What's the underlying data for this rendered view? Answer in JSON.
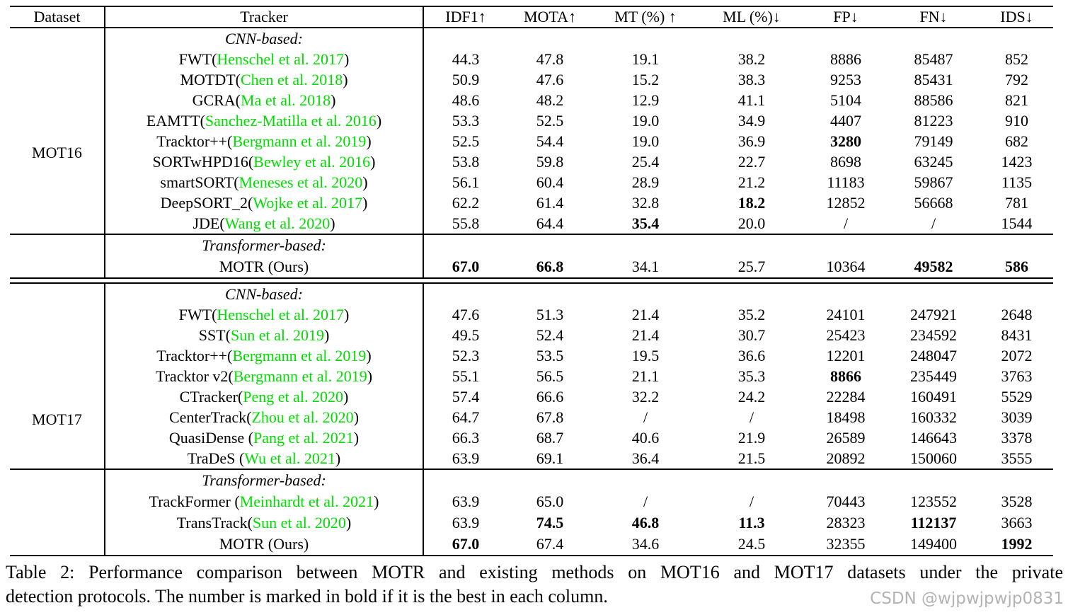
{
  "header": {
    "columns": [
      "Dataset",
      "Tracker",
      "IDF1↑",
      "MOTA↑",
      "MT (%) ↑",
      "ML (%)↓",
      "FP↓",
      "FN↓",
      "IDS↓"
    ]
  },
  "colors": {
    "citation_green": "#00dd00",
    "line_black": "#000000",
    "watermark_gray": "#b3b3b3"
  },
  "sections": [
    {
      "dataset": "MOT16",
      "blocks": [
        {
          "label": "CNN-based:",
          "rows": [
            {
              "name": "FWT",
              "sep": "",
              "cite": "Henschel et al. 2017",
              "vals": [
                "44.3",
                "47.8",
                "19.1",
                "38.2",
                "8886",
                "85487",
                "852"
              ],
              "bold": []
            },
            {
              "name": "MOTDT",
              "sep": "",
              "cite": "Chen et al. 2018",
              "vals": [
                "50.9",
                "47.6",
                "15.2",
                "38.3",
                "9253",
                "85431",
                "792"
              ],
              "bold": []
            },
            {
              "name": "GCRA",
              "sep": "",
              "cite": "Ma et al. 2018",
              "vals": [
                "48.6",
                "48.2",
                "12.9",
                "41.1",
                "5104",
                "88586",
                "821"
              ],
              "bold": []
            },
            {
              "name": "EAMTT",
              "sep": "",
              "cite": "Sanchez-Matilla et al. 2016",
              "vals": [
                "53.3",
                "52.5",
                "19.0",
                "34.9",
                "4407",
                "81223",
                "910"
              ],
              "bold": []
            },
            {
              "name": "Tracktor++",
              "sep": "",
              "cite": "Bergmann et al. 2019",
              "vals": [
                "52.5",
                "54.4",
                "19.0",
                "36.9",
                "3280",
                "79149",
                "682"
              ],
              "bold": [
                4
              ]
            },
            {
              "name": "SORTwHPD16",
              "sep": "",
              "cite": "Bewley et al. 2016",
              "vals": [
                "53.8",
                "59.8",
                "25.4",
                "22.7",
                "8698",
                "63245",
                "1423"
              ],
              "bold": []
            },
            {
              "name": "smartSORT",
              "sep": "",
              "cite": "Meneses et al. 2020",
              "vals": [
                "56.1",
                "60.4",
                "28.9",
                "21.2",
                "11183",
                "59867",
                "1135"
              ],
              "bold": []
            },
            {
              "name": "DeepSORT_2",
              "sep": "",
              "cite": "Wojke et al. 2017",
              "vals": [
                "62.2",
                "61.4",
                "32.8",
                "18.2",
                "12852",
                "56668",
                "781"
              ],
              "bold": [
                3
              ]
            },
            {
              "name": "JDE",
              "sep": "",
              "cite": "Wang et al. 2020",
              "vals": [
                "55.8",
                "64.4",
                "35.4",
                "20.0",
                "/",
                "/",
                "1544"
              ],
              "bold": [
                2
              ]
            }
          ]
        },
        {
          "label": "Transformer-based:",
          "rows": [
            {
              "name": "MOTR (Ours)",
              "sep": "",
              "cite": null,
              "vals": [
                "67.0",
                "66.8",
                "34.1",
                "25.7",
                "10364",
                "49582",
                "586"
              ],
              "bold": [
                0,
                1,
                5,
                6
              ]
            }
          ]
        }
      ]
    },
    {
      "dataset": "MOT17",
      "blocks": [
        {
          "label": "CNN-based:",
          "rows": [
            {
              "name": "FWT",
              "sep": "",
              "cite": "Henschel et al. 2017",
              "vals": [
                "47.6",
                "51.3",
                "21.4",
                "35.2",
                "24101",
                "247921",
                "2648"
              ],
              "bold": []
            },
            {
              "name": "SST",
              "sep": "",
              "cite": "Sun et al. 2019",
              "vals": [
                "49.5",
                "52.4",
                "21.4",
                "30.7",
                "25423",
                "234592",
                "8431"
              ],
              "bold": []
            },
            {
              "name": "Tracktor++",
              "sep": "",
              "cite": "Bergmann et al. 2019",
              "vals": [
                "52.3",
                "53.5",
                "19.5",
                "36.6",
                "12201",
                "248047",
                "2072"
              ],
              "bold": []
            },
            {
              "name": "Tracktor v2",
              "sep": "",
              "cite": "Bergmann et al. 2019",
              "vals": [
                "55.1",
                "56.5",
                "21.1",
                "35.3",
                "8866",
                "235449",
                "3763"
              ],
              "bold": [
                4
              ]
            },
            {
              "name": "CTracker",
              "sep": "",
              "cite": "Peng et al. 2020",
              "vals": [
                "57.4",
                "66.6",
                "32.2",
                "24.2",
                "22284",
                "160491",
                "5529"
              ],
              "bold": []
            },
            {
              "name": "CenterTrack",
              "sep": "",
              "cite": "Zhou et al. 2020",
              "vals": [
                "64.7",
                "67.8",
                "/",
                "/",
                "18498",
                "160332",
                "3039"
              ],
              "bold": []
            },
            {
              "name": "QuasiDense",
              "sep": " ",
              "cite": "Pang et al. 2021",
              "vals": [
                "66.3",
                "68.7",
                "40.6",
                "21.9",
                "26589",
                "146643",
                "3378"
              ],
              "bold": []
            },
            {
              "name": "TraDeS",
              "sep": " ",
              "cite": "Wu et al. 2021",
              "vals": [
                "63.9",
                "69.1",
                "36.4",
                "21.5",
                "20892",
                "150060",
                "3555"
              ],
              "bold": []
            }
          ]
        },
        {
          "label": "Transformer-based:",
          "rows": [
            {
              "name": "TrackFormer",
              "sep": " ",
              "cite": "Meinhardt et al. 2021",
              "vals": [
                "63.9",
                "65.0",
                "/",
                "/",
                "70443",
                "123552",
                "3528"
              ],
              "bold": []
            },
            {
              "name": "TransTrack",
              "sep": "",
              "cite": "Sun et al. 2020",
              "vals": [
                "63.9",
                "74.5",
                "46.8",
                "11.3",
                "28323",
                "112137",
                "3663"
              ],
              "bold": [
                1,
                2,
                3,
                5
              ]
            },
            {
              "name": "MOTR (Ours)",
              "sep": "",
              "cite": null,
              "vals": [
                "67.0",
                "67.4",
                "34.6",
                "24.5",
                "32355",
                "149400",
                "1992"
              ],
              "bold": [
                0,
                6
              ]
            }
          ]
        }
      ]
    }
  ],
  "caption": {
    "line1": "Table 2: Performance comparison between MOTR and existing methods on MOT16 and MOT17 datasets under the private",
    "line2": "detection protocols. The number is marked in bold if it is the best in each column."
  },
  "watermark": "CSDN @wjpwjpwjp0831"
}
